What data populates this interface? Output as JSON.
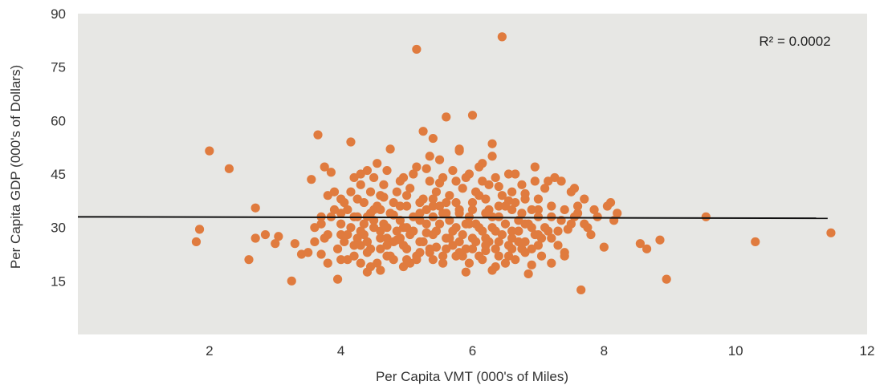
{
  "chart_data": {
    "type": "scatter",
    "title": "",
    "xlabel": "Per Capita VMT (000's of Miles)",
    "ylabel": "Per Capita GDP (000's of Dollars)",
    "xlim": [
      0,
      12
    ],
    "ylim": [
      0,
      90
    ],
    "xticks": [
      2,
      4,
      6,
      8,
      10,
      12
    ],
    "yticks": [
      15,
      30,
      45,
      60,
      75,
      90
    ],
    "grid": false,
    "annotation": "R² = 0.0002",
    "colors": {
      "plot_background": "#e7e7e4",
      "marker": "#e07b3e",
      "trendline": "#111111"
    },
    "trendline": {
      "x": [
        0,
        11.4
      ],
      "y": [
        33.0,
        32.6
      ]
    },
    "series": [
      {
        "points": [
          [
            1.8,
            26
          ],
          [
            1.85,
            29.5
          ],
          [
            2.0,
            51.5
          ],
          [
            2.3,
            46.5
          ],
          [
            2.6,
            21
          ],
          [
            2.7,
            35.5
          ],
          [
            2.7,
            27
          ],
          [
            2.85,
            28
          ],
          [
            3.0,
            25.5
          ],
          [
            3.05,
            27.5
          ],
          [
            3.25,
            15
          ],
          [
            3.3,
            25.5
          ],
          [
            3.4,
            22.5
          ],
          [
            3.5,
            23
          ],
          [
            3.55,
            43.5
          ],
          [
            3.6,
            30
          ],
          [
            3.65,
            56
          ],
          [
            3.7,
            33
          ],
          [
            3.75,
            47
          ],
          [
            3.8,
            39
          ],
          [
            3.85,
            45.5
          ],
          [
            3.9,
            40
          ],
          [
            3.95,
            15.5
          ],
          [
            4.0,
            28
          ],
          [
            4.05,
            37
          ],
          [
            4.1,
            21
          ],
          [
            4.15,
            54
          ],
          [
            4.2,
            44
          ],
          [
            4.25,
            27
          ],
          [
            4.3,
            42
          ],
          [
            4.35,
            31
          ],
          [
            4.4,
            46
          ],
          [
            4.45,
            24
          ],
          [
            4.5,
            35
          ],
          [
            4.55,
            48
          ],
          [
            4.6,
            29
          ],
          [
            4.65,
            38.5
          ],
          [
            4.7,
            22
          ],
          [
            4.75,
            52
          ],
          [
            4.8,
            33.5
          ],
          [
            4.85,
            26.5
          ],
          [
            4.9,
            43
          ],
          [
            4.95,
            30
          ],
          [
            5.0,
            36
          ],
          [
            5.05,
            20
          ],
          [
            5.1,
            45
          ],
          [
            5.15,
            80
          ],
          [
            5.2,
            32
          ],
          [
            5.25,
            57
          ],
          [
            5.3,
            28.5
          ],
          [
            5.35,
            50
          ],
          [
            5.4,
            38
          ],
          [
            5.45,
            24.5
          ],
          [
            5.5,
            42.5
          ],
          [
            5.55,
            34
          ],
          [
            5.6,
            61
          ],
          [
            5.65,
            27
          ],
          [
            5.7,
            46
          ],
          [
            5.75,
            37
          ],
          [
            5.8,
            51.5
          ],
          [
            5.85,
            22
          ],
          [
            5.9,
            44
          ],
          [
            5.95,
            31
          ],
          [
            6.0,
            61.5
          ],
          [
            6.05,
            26
          ],
          [
            6.1,
            39
          ],
          [
            6.15,
            48
          ],
          [
            6.2,
            23.5
          ],
          [
            6.25,
            35
          ],
          [
            6.3,
            53.5
          ],
          [
            6.35,
            29
          ],
          [
            6.4,
            41.5
          ],
          [
            6.45,
            83.5
          ],
          [
            6.5,
            20
          ],
          [
            6.55,
            37.5
          ],
          [
            6.6,
            27
          ],
          [
            6.65,
            45
          ],
          [
            6.7,
            32
          ],
          [
            6.75,
            24
          ],
          [
            6.8,
            39.5
          ],
          [
            6.85,
            17
          ],
          [
            6.9,
            30
          ],
          [
            6.95,
            47
          ],
          [
            7.0,
            35
          ],
          [
            7.05,
            22
          ],
          [
            7.1,
            41
          ],
          [
            7.15,
            29
          ],
          [
            7.2,
            33
          ],
          [
            7.25,
            44
          ],
          [
            7.3,
            25
          ],
          [
            7.35,
            32
          ],
          [
            7.4,
            23
          ],
          [
            7.45,
            29.5
          ],
          [
            7.5,
            40
          ],
          [
            7.55,
            33
          ],
          [
            7.6,
            36
          ],
          [
            7.65,
            12.5
          ],
          [
            7.7,
            38
          ],
          [
            7.75,
            30
          ],
          [
            7.8,
            28
          ],
          [
            7.9,
            33
          ],
          [
            8.0,
            24.5
          ],
          [
            8.1,
            37
          ],
          [
            8.2,
            34
          ],
          [
            8.55,
            25.5
          ],
          [
            8.65,
            24
          ],
          [
            8.85,
            26.5
          ],
          [
            8.95,
            15.5
          ],
          [
            9.55,
            33
          ],
          [
            10.3,
            26
          ],
          [
            11.45,
            28.5
          ],
          [
            3.8,
            28
          ],
          [
            3.85,
            33
          ],
          [
            3.95,
            24
          ],
          [
            4.0,
            31
          ],
          [
            4.05,
            26
          ],
          [
            4.1,
            35
          ],
          [
            4.15,
            30
          ],
          [
            4.2,
            22
          ],
          [
            4.25,
            38
          ],
          [
            4.3,
            25
          ],
          [
            4.35,
            28
          ],
          [
            4.4,
            33
          ],
          [
            4.45,
            19
          ],
          [
            4.5,
            30
          ],
          [
            4.55,
            36
          ],
          [
            4.6,
            24
          ],
          [
            4.65,
            31
          ],
          [
            4.7,
            27
          ],
          [
            4.75,
            34
          ],
          [
            4.8,
            21
          ],
          [
            4.85,
            29
          ],
          [
            4.9,
            36
          ],
          [
            4.95,
            25
          ],
          [
            5.0,
            30
          ],
          [
            5.05,
            28
          ],
          [
            5.1,
            33
          ],
          [
            5.15,
            22
          ],
          [
            5.2,
            37
          ],
          [
            5.25,
            26
          ],
          [
            5.3,
            31
          ],
          [
            5.35,
            24
          ],
          [
            5.4,
            33
          ],
          [
            5.45,
            29
          ],
          [
            5.5,
            36
          ],
          [
            5.55,
            22
          ],
          [
            5.6,
            27
          ],
          [
            5.65,
            32
          ],
          [
            5.7,
            25
          ],
          [
            5.75,
            30
          ],
          [
            5.8,
            35
          ],
          [
            5.85,
            28
          ],
          [
            5.9,
            24
          ],
          [
            5.95,
            33
          ],
          [
            6.0,
            27
          ],
          [
            6.05,
            31
          ],
          [
            6.1,
            22
          ],
          [
            6.15,
            29
          ],
          [
            6.2,
            34
          ],
          [
            6.25,
            26
          ],
          [
            6.3,
            30
          ],
          [
            6.35,
            24
          ],
          [
            6.4,
            33
          ],
          [
            6.45,
            28
          ],
          [
            6.5,
            31
          ],
          [
            6.55,
            25
          ],
          [
            6.6,
            35
          ],
          [
            6.65,
            21
          ],
          [
            6.7,
            29
          ],
          [
            6.75,
            34
          ],
          [
            6.8,
            26
          ],
          [
            6.85,
            31
          ],
          [
            6.9,
            24
          ],
          [
            6.95,
            28
          ],
          [
            7.0,
            33
          ],
          [
            7.05,
            27
          ],
          [
            7.1,
            30
          ],
          [
            4.0,
            34
          ],
          [
            4.1,
            28
          ],
          [
            4.2,
            33
          ],
          [
            4.3,
            29
          ],
          [
            4.4,
            26
          ],
          [
            4.5,
            32
          ],
          [
            4.6,
            35
          ],
          [
            4.7,
            30
          ],
          [
            4.8,
            26
          ],
          [
            4.9,
            32
          ],
          [
            5.0,
            24
          ],
          [
            5.1,
            29
          ],
          [
            5.2,
            26
          ],
          [
            5.3,
            35
          ],
          [
            5.4,
            28
          ],
          [
            5.5,
            31
          ],
          [
            5.6,
            34
          ],
          [
            5.7,
            29
          ],
          [
            5.8,
            26
          ],
          [
            5.9,
            31
          ],
          [
            6.0,
            35
          ],
          [
            6.1,
            30
          ],
          [
            6.2,
            27
          ],
          [
            6.3,
            33
          ],
          [
            6.4,
            26
          ],
          [
            6.5,
            36
          ],
          [
            6.6,
            29
          ],
          [
            6.7,
            26
          ],
          [
            6.8,
            31
          ],
          [
            6.9,
            35
          ],
          [
            7.0,
            28
          ],
          [
            4.45,
            40
          ],
          [
            4.65,
            42
          ],
          [
            4.85,
            40
          ],
          [
            5.05,
            41
          ],
          [
            5.25,
            38
          ],
          [
            5.45,
            40
          ],
          [
            5.65,
            39
          ],
          [
            5.85,
            41
          ],
          [
            6.05,
            40
          ],
          [
            6.25,
            42
          ],
          [
            6.45,
            39
          ],
          [
            6.65,
            37
          ],
          [
            4.55,
            20
          ],
          [
            4.75,
            22
          ],
          [
            4.95,
            19
          ],
          [
            5.15,
            21
          ],
          [
            5.35,
            23
          ],
          [
            5.55,
            20
          ],
          [
            5.75,
            22
          ],
          [
            5.95,
            20
          ],
          [
            6.15,
            21
          ],
          [
            6.35,
            19
          ],
          [
            6.55,
            22
          ],
          [
            3.7,
            31
          ],
          [
            3.75,
            27
          ],
          [
            3.9,
            35
          ],
          [
            4.0,
            38
          ],
          [
            4.15,
            40
          ],
          [
            4.25,
            33
          ],
          [
            4.35,
            37
          ],
          [
            4.45,
            34
          ],
          [
            4.6,
            39
          ],
          [
            4.8,
            37
          ],
          [
            5.0,
            39
          ],
          [
            5.2,
            34
          ],
          [
            5.4,
            36
          ],
          [
            5.6,
            37
          ],
          [
            5.8,
            34
          ],
          [
            6.0,
            37
          ],
          [
            6.2,
            38
          ],
          [
            6.4,
            36
          ],
          [
            6.6,
            40
          ],
          [
            6.8,
            38
          ],
          [
            7.0,
            38
          ],
          [
            7.2,
            36
          ],
          [
            7.4,
            35
          ],
          [
            3.6,
            26
          ],
          [
            3.7,
            22.5
          ],
          [
            3.8,
            20
          ],
          [
            4.0,
            21
          ],
          [
            4.2,
            25
          ],
          [
            4.3,
            20
          ],
          [
            4.4,
            23
          ],
          [
            4.6,
            27
          ],
          [
            4.7,
            25
          ],
          [
            4.9,
            27
          ],
          [
            5.0,
            21
          ],
          [
            5.2,
            23
          ],
          [
            5.4,
            21
          ],
          [
            5.6,
            24
          ],
          [
            5.8,
            23
          ],
          [
            6.0,
            24
          ],
          [
            6.2,
            25
          ],
          [
            6.4,
            22
          ],
          [
            6.6,
            24
          ],
          [
            6.8,
            23
          ],
          [
            7.0,
            25
          ],
          [
            7.2,
            27
          ],
          [
            7.3,
            29
          ],
          [
            7.5,
            31
          ],
          [
            7.6,
            34
          ],
          [
            7.7,
            31
          ],
          [
            7.85,
            35
          ],
          [
            8.05,
            36
          ],
          [
            8.15,
            32
          ],
          [
            4.3,
            45
          ],
          [
            4.5,
            44
          ],
          [
            4.7,
            46
          ],
          [
            4.95,
            44
          ],
          [
            5.15,
            47
          ],
          [
            5.35,
            43
          ],
          [
            5.55,
            44
          ],
          [
            5.75,
            43
          ],
          [
            5.95,
            45
          ],
          [
            6.15,
            43
          ],
          [
            6.35,
            44
          ],
          [
            6.55,
            45
          ],
          [
            6.75,
            42
          ],
          [
            6.95,
            43
          ],
          [
            7.15,
            43
          ],
          [
            7.35,
            43
          ],
          [
            7.55,
            41
          ],
          [
            5.4,
            55
          ],
          [
            5.5,
            49
          ],
          [
            5.8,
            52
          ],
          [
            6.3,
            50
          ],
          [
            6.1,
            47
          ],
          [
            5.3,
            46.5
          ],
          [
            4.4,
            17.5
          ],
          [
            4.6,
            18
          ],
          [
            5.9,
            17.5
          ],
          [
            7.2,
            20
          ],
          [
            7.4,
            22
          ],
          [
            6.9,
            19.5
          ],
          [
            6.3,
            18
          ]
        ]
      }
    ]
  }
}
